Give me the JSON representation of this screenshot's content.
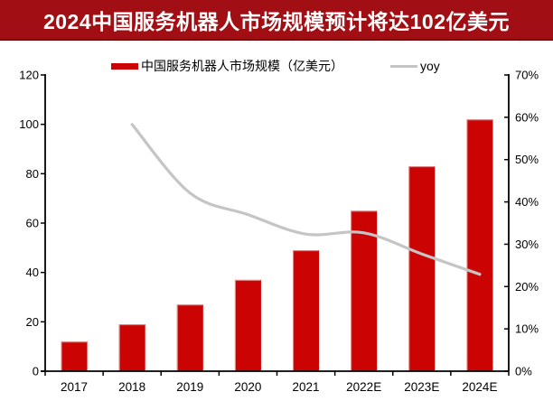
{
  "title": "2024中国服务机器人市场规模预计将达102亿美元",
  "colors": {
    "banner_bg": "#A10E13",
    "banner_border": "#73080B",
    "title_text": "#FFFFFF",
    "bar": "#CB0303",
    "bar_edge": "#E8A7A7",
    "line": "#C5C5C5",
    "axis": "#000000",
    "label_text": "#000000",
    "background": "#FFFFFF"
  },
  "legend": [
    {
      "label": "中国服务机器人市场规模（亿美元）",
      "swatch": "bar-swatch"
    },
    {
      "label": "yoy",
      "swatch": "line-swatch"
    }
  ],
  "chart_data": {
    "type": "bar",
    "title": "2024中国服务机器人市场规模预计将达102亿美元",
    "categories": [
      "2017",
      "2018",
      "2019",
      "2020",
      "2021",
      "2022E",
      "2023E",
      "2024E"
    ],
    "series": [
      {
        "name": "中国服务机器人市场规模（亿美元）",
        "type": "bar",
        "axis": "left",
        "values": [
          12,
          19,
          27,
          37,
          49,
          65,
          83,
          102
        ]
      },
      {
        "name": "yoy",
        "type": "line",
        "axis": "right",
        "unit": "%",
        "values": [
          null,
          58.3,
          42.1,
          37.0,
          32.4,
          32.7,
          27.7,
          22.9
        ]
      }
    ],
    "left_axis": {
      "min": 0,
      "max": 120,
      "step": 20,
      "ticks": [
        "0",
        "20",
        "40",
        "60",
        "80",
        "100",
        "120"
      ]
    },
    "right_axis": {
      "min": 0,
      "max": 70,
      "step": 10,
      "ticks": [
        "0%",
        "10%",
        "20%",
        "30%",
        "40%",
        "50%",
        "60%",
        "70%"
      ]
    },
    "grid": false,
    "legend_position": "top",
    "line_smoothed": true
  }
}
